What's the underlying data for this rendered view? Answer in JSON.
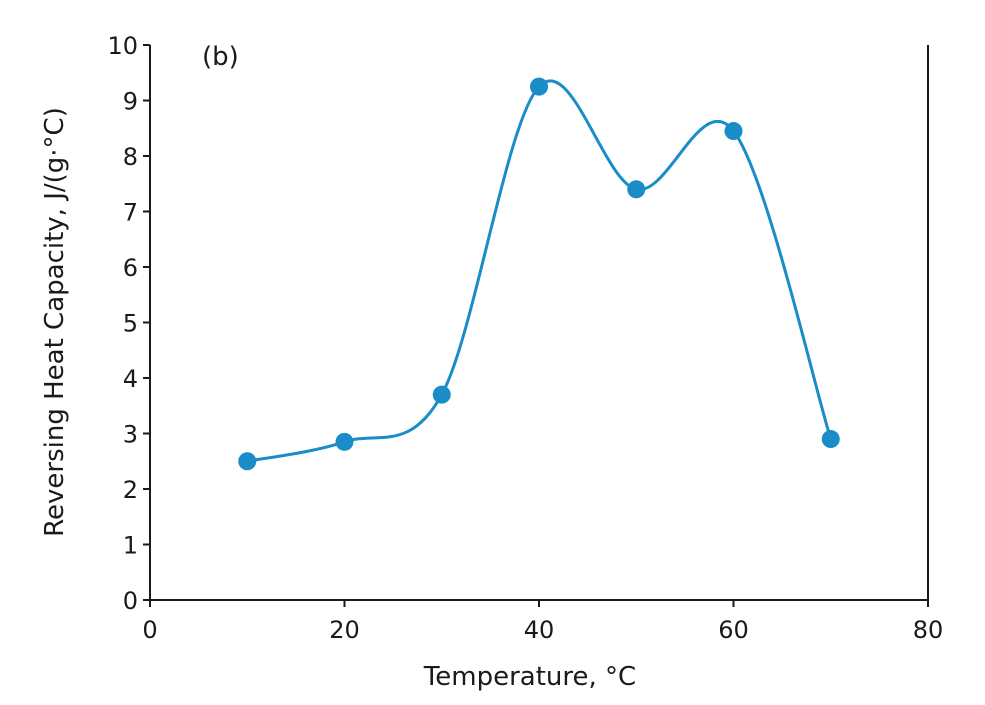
{
  "chart_data": {
    "type": "line",
    "panel_label": "(b)",
    "title": "",
    "xlabel": "Temperature, °C",
    "ylabel": "Reversing Heat Capacity, J/(g·°C)",
    "xlim": [
      0,
      80
    ],
    "ylim": [
      0,
      10
    ],
    "x_ticks": [
      0,
      20,
      40,
      60,
      80
    ],
    "y_ticks": [
      0,
      1,
      2,
      3,
      4,
      5,
      6,
      7,
      8,
      9,
      10
    ],
    "grid": false,
    "smooth_line": true,
    "series": [
      {
        "x": [
          10,
          20,
          30,
          40,
          50,
          60,
          70
        ],
        "y": [
          2.5,
          2.85,
          3.7,
          9.25,
          7.4,
          8.45,
          2.9
        ],
        "color": "#1a8cc8"
      }
    ],
    "colors": {
      "series": "#1a8cc8",
      "ylabel": "#1a8cc8",
      "axis": "#1a1a1a"
    }
  }
}
